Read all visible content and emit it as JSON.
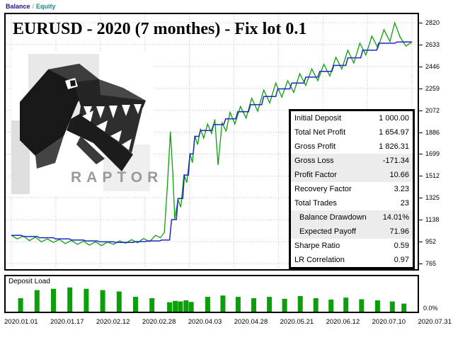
{
  "legend": {
    "balance_label": "Balance",
    "separator": "/",
    "equity_label": "Equity"
  },
  "title": "EURUSD - 2020 (7 monthes) - Fix lot 0.1",
  "logo": {
    "text": "RAPTOR"
  },
  "colors": {
    "balance_line": "#1e28c8",
    "equity_line": "#0aa00a",
    "deposit_bar": "#0aa00a",
    "grid": "#c4c4c4",
    "legend_balance": "#16168c",
    "legend_equity": "#0e8c8c",
    "table_border": "#000000",
    "shaded_row": "#ececec"
  },
  "stats_table": {
    "rows": [
      {
        "label": "Initial Deposit",
        "value": "1 000.00",
        "shaded": false,
        "indent": false
      },
      {
        "label": "Total Net Profit",
        "value": "1 654.97",
        "shaded": false,
        "indent": false
      },
      {
        "label": "Gross Profit",
        "value": "1 826.31",
        "shaded": false,
        "indent": false
      },
      {
        "label": "Gross Loss",
        "value": "-171.34",
        "shaded": true,
        "indent": false
      },
      {
        "label": "Profit Factor",
        "value": "10.66",
        "shaded": true,
        "indent": false
      },
      {
        "label": "Recovery Factor",
        "value": "3.23",
        "shaded": false,
        "indent": false
      },
      {
        "label": "Total Trades",
        "value": "23",
        "shaded": false,
        "indent": false
      },
      {
        "label": "Balance Drawdown",
        "value": "14.01%",
        "shaded": true,
        "indent": true
      },
      {
        "label": "Expected Payoff",
        "value": "71.96",
        "shaded": true,
        "indent": true
      },
      {
        "label": "Sharpe Ratio",
        "value": "0.59",
        "shaded": false,
        "indent": false
      },
      {
        "label": "LR Correlation",
        "value": "0.97",
        "shaded": false,
        "indent": false
      }
    ]
  },
  "chart_data": {
    "type": "line",
    "title": "EURUSD - 2020 (7 monthes) - Fix lot 0.1",
    "ylim": [
      765,
      2820
    ],
    "y_ticks": [
      2820,
      2633,
      2446,
      2259,
      2072,
      1886,
      1699,
      1512,
      1325,
      1138,
      952,
      765
    ],
    "x_tick_labels": [
      "2020.01.01",
      "2020.01.17",
      "2020.02.12",
      "2020.02.28",
      "2020.04.03",
      "2020.04.28",
      "2020.05.21",
      "2020.06.12",
      "2020.07.10",
      "2020.07.31"
    ],
    "grid": true,
    "legend_position": "top-left",
    "series": [
      {
        "name": "Equity",
        "color": "#0aa00a",
        "width": 1.3,
        "points": [
          [
            0.0,
            1005
          ],
          [
            0.015,
            975
          ],
          [
            0.03,
            1000
          ],
          [
            0.045,
            960
          ],
          [
            0.06,
            990
          ],
          [
            0.075,
            950
          ],
          [
            0.09,
            975
          ],
          [
            0.105,
            945
          ],
          [
            0.12,
            970
          ],
          [
            0.135,
            935
          ],
          [
            0.15,
            962
          ],
          [
            0.165,
            928
          ],
          [
            0.18,
            955
          ],
          [
            0.195,
            922
          ],
          [
            0.21,
            950
          ],
          [
            0.225,
            918
          ],
          [
            0.24,
            948
          ],
          [
            0.255,
            928
          ],
          [
            0.27,
            958
          ],
          [
            0.285,
            938
          ],
          [
            0.3,
            968
          ],
          [
            0.315,
            942
          ],
          [
            0.33,
            978
          ],
          [
            0.345,
            952
          ],
          [
            0.36,
            1005
          ],
          [
            0.372,
            985
          ],
          [
            0.382,
            1030
          ],
          [
            0.39,
            1450
          ],
          [
            0.397,
            1890
          ],
          [
            0.403,
            1540
          ],
          [
            0.408,
            1145
          ],
          [
            0.416,
            1310
          ],
          [
            0.423,
            1245
          ],
          [
            0.431,
            1525
          ],
          [
            0.438,
            1455
          ],
          [
            0.446,
            1705
          ],
          [
            0.452,
            1625
          ],
          [
            0.458,
            1855
          ],
          [
            0.465,
            1780
          ],
          [
            0.472,
            1910
          ],
          [
            0.48,
            1835
          ],
          [
            0.49,
            1955
          ],
          [
            0.5,
            1875
          ],
          [
            0.508,
            1995
          ],
          [
            0.516,
            1605
          ],
          [
            0.526,
            1965
          ],
          [
            0.536,
            1895
          ],
          [
            0.546,
            2055
          ],
          [
            0.558,
            1955
          ],
          [
            0.572,
            2105
          ],
          [
            0.586,
            2005
          ],
          [
            0.6,
            2175
          ],
          [
            0.615,
            2065
          ],
          [
            0.63,
            2245
          ],
          [
            0.645,
            2135
          ],
          [
            0.66,
            2305
          ],
          [
            0.675,
            2185
          ],
          [
            0.69,
            2325
          ],
          [
            0.705,
            2225
          ],
          [
            0.72,
            2385
          ],
          [
            0.735,
            2285
          ],
          [
            0.75,
            2425
          ],
          [
            0.765,
            2325
          ],
          [
            0.78,
            2465
          ],
          [
            0.795,
            2365
          ],
          [
            0.81,
            2525
          ],
          [
            0.825,
            2425
          ],
          [
            0.84,
            2585
          ],
          [
            0.855,
            2475
          ],
          [
            0.87,
            2645
          ],
          [
            0.885,
            2545
          ],
          [
            0.9,
            2705
          ],
          [
            0.915,
            2605
          ],
          [
            0.93,
            2760
          ],
          [
            0.945,
            2660
          ],
          [
            0.957,
            2820
          ],
          [
            0.97,
            2700
          ],
          [
            0.985,
            2620
          ],
          [
            1.0,
            2655
          ]
        ]
      },
      {
        "name": "Balance",
        "color": "#1e28c8",
        "width": 1.5,
        "points": [
          [
            0.0,
            1005
          ],
          [
            0.025,
            1005
          ],
          [
            0.03,
            995
          ],
          [
            0.065,
            995
          ],
          [
            0.07,
            985
          ],
          [
            0.105,
            985
          ],
          [
            0.11,
            975
          ],
          [
            0.145,
            975
          ],
          [
            0.15,
            965
          ],
          [
            0.18,
            965
          ],
          [
            0.185,
            958
          ],
          [
            0.215,
            958
          ],
          [
            0.22,
            950
          ],
          [
            0.255,
            950
          ],
          [
            0.26,
            945
          ],
          [
            0.305,
            945
          ],
          [
            0.31,
            952
          ],
          [
            0.335,
            952
          ],
          [
            0.34,
            958
          ],
          [
            0.37,
            958
          ],
          [
            0.375,
            965
          ],
          [
            0.395,
            965
          ],
          [
            0.4,
            1140
          ],
          [
            0.412,
            1140
          ],
          [
            0.416,
            1320
          ],
          [
            0.428,
            1320
          ],
          [
            0.432,
            1520
          ],
          [
            0.442,
            1520
          ],
          [
            0.446,
            1700
          ],
          [
            0.454,
            1700
          ],
          [
            0.458,
            1850
          ],
          [
            0.468,
            1850
          ],
          [
            0.472,
            1900
          ],
          [
            0.5,
            1900
          ],
          [
            0.505,
            1950
          ],
          [
            0.53,
            1950
          ],
          [
            0.535,
            2000
          ],
          [
            0.56,
            2000
          ],
          [
            0.565,
            2060
          ],
          [
            0.592,
            2060
          ],
          [
            0.597,
            2120
          ],
          [
            0.625,
            2120
          ],
          [
            0.63,
            2190
          ],
          [
            0.66,
            2190
          ],
          [
            0.665,
            2255
          ],
          [
            0.695,
            2255
          ],
          [
            0.7,
            2305
          ],
          [
            0.73,
            2305
          ],
          [
            0.735,
            2355
          ],
          [
            0.765,
            2355
          ],
          [
            0.77,
            2405
          ],
          [
            0.8,
            2405
          ],
          [
            0.805,
            2455
          ],
          [
            0.835,
            2455
          ],
          [
            0.84,
            2520
          ],
          [
            0.872,
            2520
          ],
          [
            0.877,
            2585
          ],
          [
            0.912,
            2585
          ],
          [
            0.917,
            2645
          ],
          [
            0.958,
            2645
          ],
          [
            0.962,
            2655
          ],
          [
            1.0,
            2655
          ]
        ]
      }
    ],
    "deposit_load": {
      "label": "Deposit Load",
      "min_label": "0.0%",
      "bar_color": "#0aa00a",
      "bars": [
        [
          0.024,
          0.5
        ],
        [
          0.065,
          0.8
        ],
        [
          0.106,
          0.85
        ],
        [
          0.147,
          0.9
        ],
        [
          0.188,
          0.85
        ],
        [
          0.229,
          0.8
        ],
        [
          0.27,
          0.75
        ],
        [
          0.311,
          0.55
        ],
        [
          0.352,
          0.5
        ],
        [
          0.396,
          0.35
        ],
        [
          0.41,
          0.4
        ],
        [
          0.423,
          0.38
        ],
        [
          0.437,
          0.42
        ],
        [
          0.45,
          0.36
        ],
        [
          0.491,
          0.55
        ],
        [
          0.529,
          0.6
        ],
        [
          0.567,
          0.55
        ],
        [
          0.606,
          0.5
        ],
        [
          0.645,
          0.55
        ],
        [
          0.683,
          0.48
        ],
        [
          0.722,
          0.58
        ],
        [
          0.761,
          0.5
        ],
        [
          0.799,
          0.45
        ],
        [
          0.836,
          0.52
        ],
        [
          0.875,
          0.46
        ],
        [
          0.915,
          0.42
        ],
        [
          0.952,
          0.38
        ],
        [
          0.981,
          0.3
        ]
      ]
    }
  }
}
